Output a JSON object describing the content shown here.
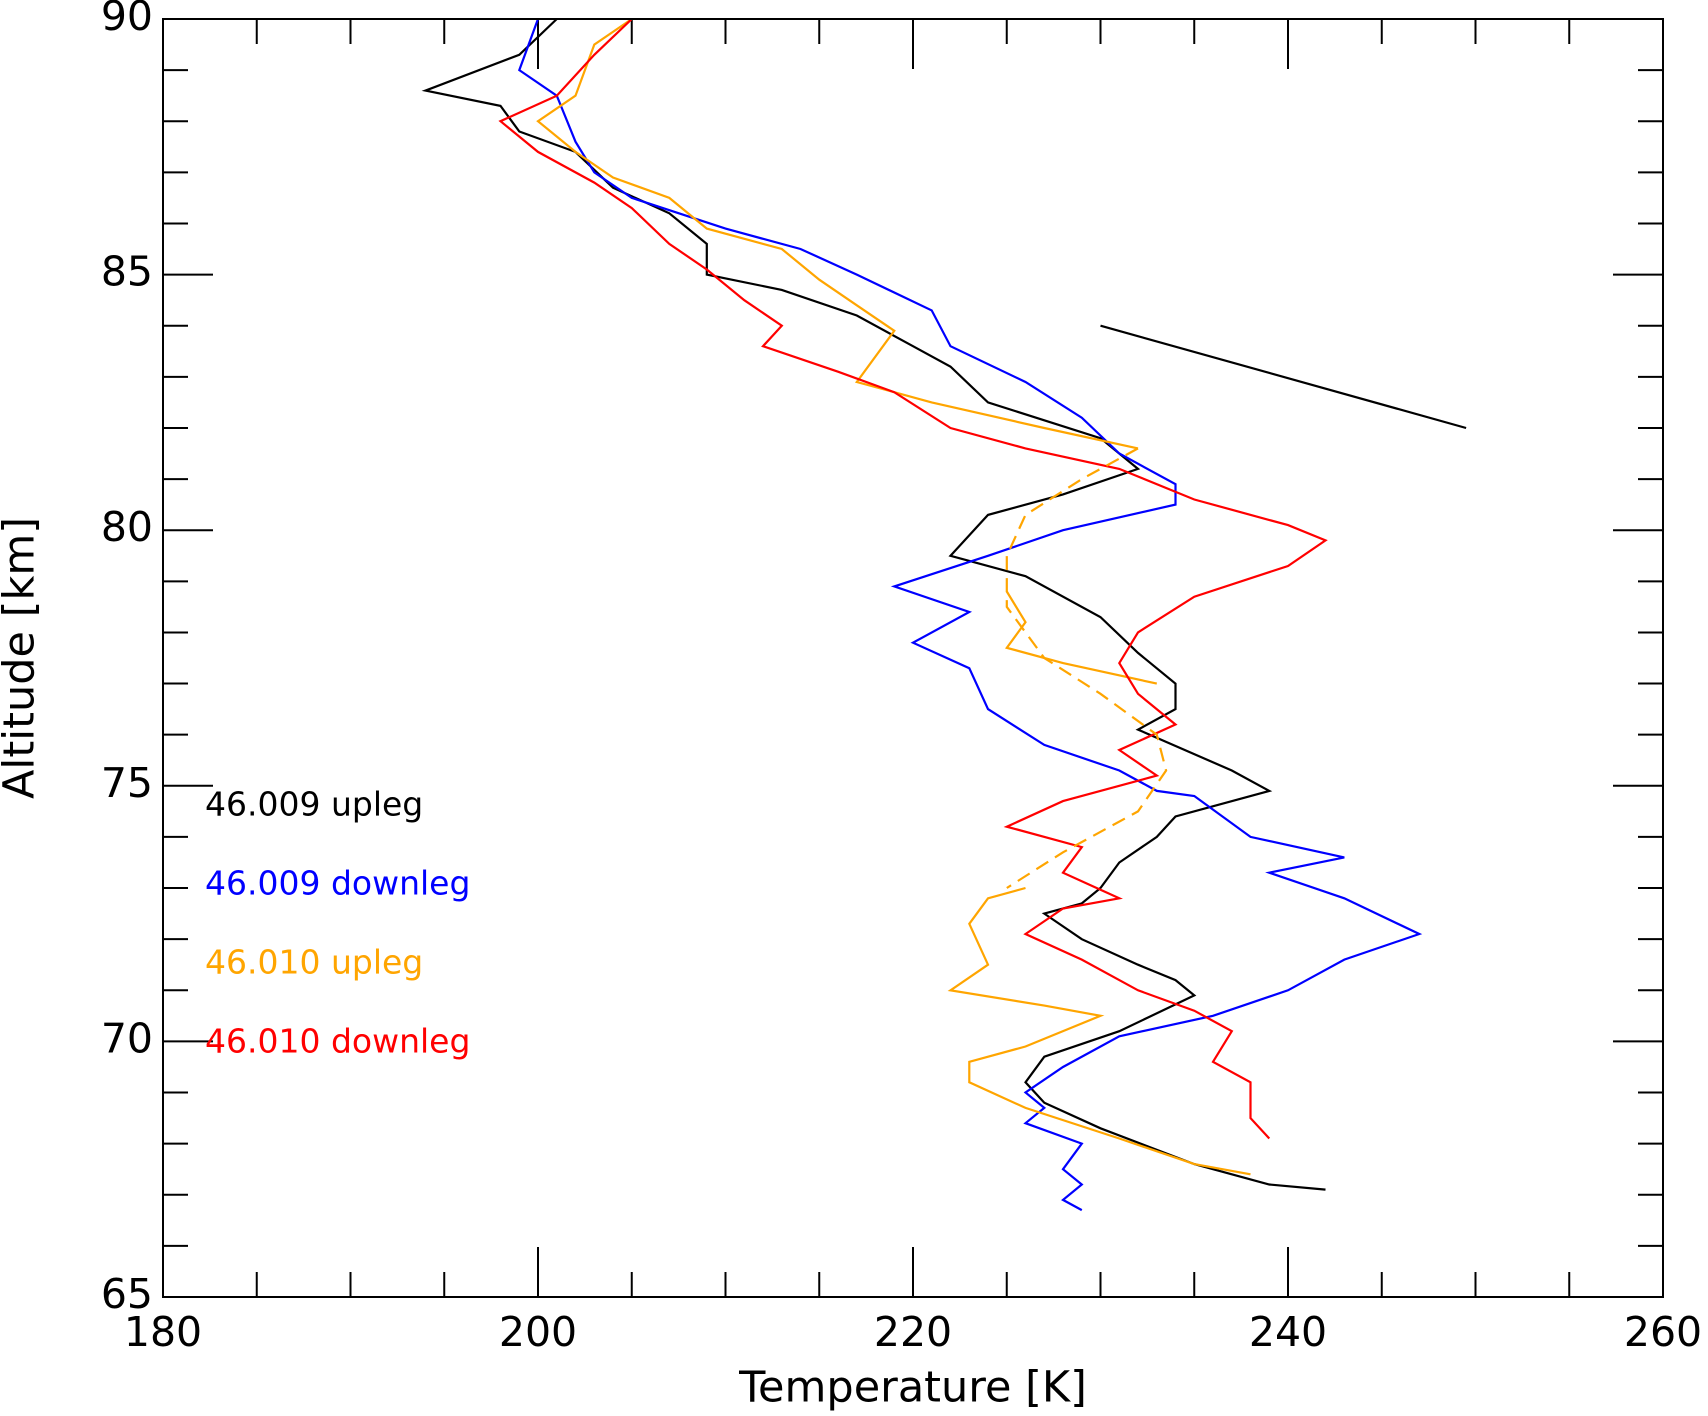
{
  "chart_data": {
    "type": "line",
    "xlabel": "Temperature [K]",
    "ylabel": "Altitude [km]",
    "xlim": [
      180,
      260
    ],
    "ylim": [
      65,
      90
    ],
    "xticks": [
      180,
      200,
      220,
      240,
      260
    ],
    "yticks": [
      65,
      70,
      75,
      80,
      85,
      90
    ],
    "xminorticks": [
      185,
      190,
      195,
      205,
      210,
      215,
      225,
      230,
      235,
      245,
      250,
      255
    ],
    "yminorticks": [
      66,
      67,
      68,
      69,
      71,
      72,
      73,
      74,
      76,
      77,
      78,
      79,
      81,
      82,
      83,
      84,
      86,
      87,
      88,
      89
    ],
    "legend": "lower left",
    "series": [
      {
        "name": "46.009 upleg",
        "color": "#000000",
        "x": [
          201,
          199,
          194,
          198,
          199,
          202,
          204,
          207,
          209,
          209,
          213,
          217,
          220,
          222,
          224,
          230,
          232,
          228,
          224,
          222,
          226,
          230,
          232,
          234,
          234,
          232,
          237,
          239,
          234,
          233,
          231,
          230,
          229,
          227,
          229,
          232,
          234,
          235,
          231,
          227,
          226,
          227,
          230,
          235,
          239,
          242
        ],
        "values": [
          90,
          89.3,
          88.6,
          88.3,
          87.8,
          87.4,
          86.7,
          86.2,
          85.6,
          85,
          84.7,
          84.2,
          83.6,
          83.2,
          82.5,
          81.8,
          81.2,
          80.7,
          80.3,
          79.5,
          79.1,
          78.3,
          77.6,
          77,
          76.5,
          76.1,
          75.3,
          74.9,
          74.4,
          74,
          73.5,
          73,
          72.7,
          72.5,
          72,
          71.5,
          71.2,
          70.9,
          70.2,
          69.7,
          69.2,
          68.8,
          68.3,
          67.6,
          67.2,
          67.1
        ]
      },
      {
        "name": "46.009 downleg",
        "color": "#0000ff",
        "x": [
          200,
          199,
          201,
          202,
          203,
          205,
          210,
          214,
          217,
          221,
          222,
          226,
          229,
          231,
          234,
          234,
          228,
          224,
          219,
          223,
          220,
          223,
          224,
          227,
          231,
          233,
          235,
          238,
          243,
          239,
          243,
          247,
          243,
          240,
          236,
          231,
          228,
          226,
          227,
          226,
          229,
          228,
          229,
          228,
          229
        ],
        "values": [
          90,
          89,
          88.5,
          87.6,
          87,
          86.5,
          85.9,
          85.5,
          85,
          84.3,
          83.6,
          82.9,
          82.2,
          81.5,
          80.9,
          80.5,
          80,
          79.5,
          78.9,
          78.4,
          77.8,
          77.3,
          76.5,
          75.8,
          75.3,
          74.9,
          74.8,
          74,
          73.6,
          73.3,
          72.8,
          72.1,
          71.6,
          71,
          70.5,
          70.1,
          69.5,
          69,
          68.7,
          68.4,
          68,
          67.5,
          67.2,
          66.9,
          66.7
        ]
      },
      {
        "name": "46.010 upleg",
        "color": "#ffa500",
        "x": [
          205,
          203,
          202,
          200,
          202,
          204,
          207,
          209,
          213,
          215,
          217,
          219,
          217,
          221,
          227,
          232,
          null,
          225,
          226,
          225,
          228,
          233,
          null,
          226,
          224,
          223,
          224,
          222,
          227,
          230,
          226,
          223,
          223,
          226,
          231,
          235,
          238
        ],
        "values": [
          90,
          89.5,
          88.5,
          88,
          87.4,
          86.9,
          86.5,
          85.9,
          85.5,
          84.9,
          84.4,
          83.9,
          82.9,
          82.5,
          82,
          81.6,
          null,
          78.8,
          78.2,
          77.7,
          77.4,
          77,
          null,
          73,
          72.8,
          72.3,
          71.5,
          71,
          70.7,
          70.5,
          69.9,
          69.6,
          69.2,
          68.7,
          68.1,
          67.6,
          67.4
        ]
      },
      {
        "name": "46.010 downleg",
        "color": "#ff0000",
        "x": [
          205,
          203,
          201,
          198,
          200,
          203,
          205,
          207,
          209,
          211,
          213,
          212,
          216,
          219,
          222,
          226,
          231,
          235,
          240,
          242,
          240,
          235,
          232,
          231,
          232,
          234,
          231,
          233,
          228,
          225,
          229,
          228,
          231,
          228,
          226,
          229,
          232,
          235,
          237,
          236,
          238,
          238,
          239
        ],
        "values": [
          90,
          89.3,
          88.5,
          88,
          87.4,
          86.8,
          86.3,
          85.6,
          85.1,
          84.5,
          84,
          83.6,
          83.1,
          82.7,
          82,
          81.6,
          81.2,
          80.6,
          80.1,
          79.8,
          79.3,
          78.7,
          78,
          77.4,
          76.8,
          76.2,
          75.7,
          75.2,
          74.7,
          74.2,
          73.8,
          73.3,
          72.8,
          72.6,
          72.1,
          71.6,
          71,
          70.6,
          70.2,
          69.6,
          69.2,
          68.5,
          68.1
        ]
      },
      {
        "color": "#ffa500",
        "dashed": true,
        "x": [
          232,
          229,
          226,
          225,
          225,
          227,
          230,
          233,
          233.5,
          232,
          228,
          225
        ],
        "values": [
          81.6,
          81,
          80.3,
          79.5,
          78.5,
          77.5,
          76.8,
          76,
          75.3,
          74.5,
          73.7,
          73
        ]
      },
      {
        "color": "#000000",
        "x": [
          230,
          249.5
        ],
        "values": [
          84,
          82
        ]
      }
    ]
  }
}
